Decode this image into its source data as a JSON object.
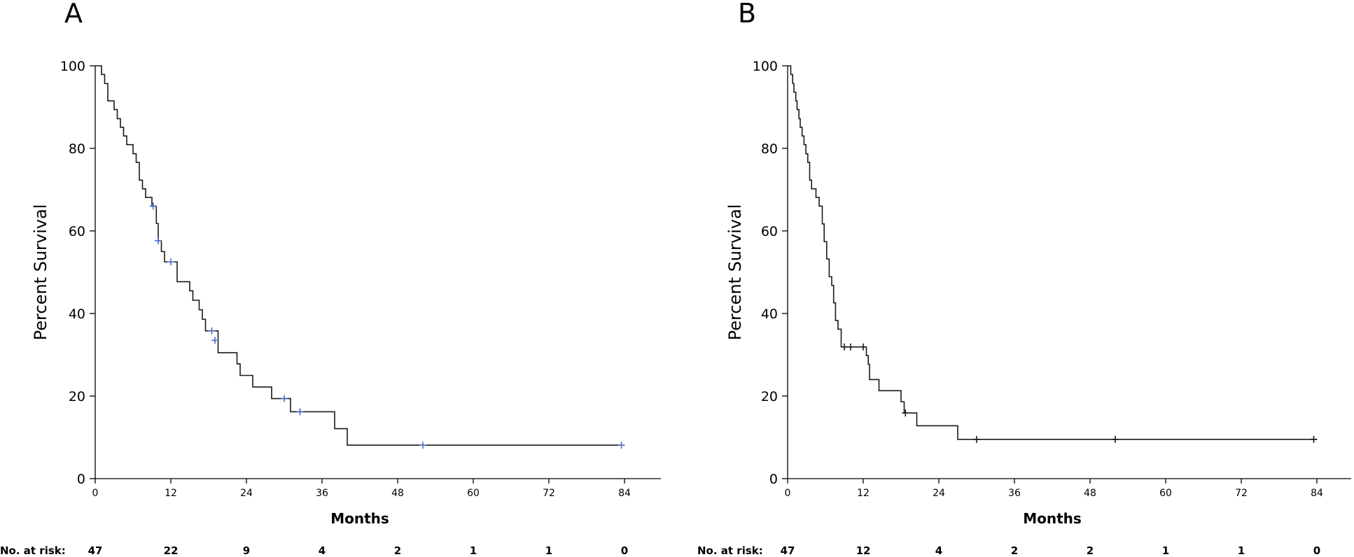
{
  "chart_data": [
    {
      "type": "line",
      "subtype": "kaplan-meier",
      "panel": "A",
      "ylabel": "Percent Survival",
      "xlabel": "Months",
      "xlim": [
        0,
        90
      ],
      "ylim": [
        0,
        100
      ],
      "x_ticks": [
        0,
        12,
        24,
        36,
        48,
        60,
        72,
        84
      ],
      "y_ticks": [
        0,
        20,
        40,
        60,
        80,
        100
      ],
      "curve_color": "#1a1a1a",
      "censor_color": "#4a6cc9",
      "series": [
        {
          "name": "Survival",
          "steps": [
            [
              0,
              100
            ],
            [
              1.0,
              97.9
            ],
            [
              1.5,
              95.7
            ],
            [
              2.0,
              91.5
            ],
            [
              3.0,
              89.4
            ],
            [
              3.5,
              87.2
            ],
            [
              4.0,
              85.1
            ],
            [
              4.5,
              83.0
            ],
            [
              5.0,
              80.9
            ],
            [
              6.0,
              78.7
            ],
            [
              6.5,
              76.6
            ],
            [
              7.0,
              72.3
            ],
            [
              7.5,
              70.2
            ],
            [
              8.0,
              68.1
            ],
            [
              9.0,
              66.0
            ],
            [
              9.7,
              61.8
            ],
            [
              10.0,
              57.6
            ],
            [
              10.5,
              55.0
            ],
            [
              11.0,
              52.5
            ],
            [
              13.0,
              47.7
            ],
            [
              15.0,
              45.5
            ],
            [
              15.5,
              43.2
            ],
            [
              16.5,
              40.9
            ],
            [
              17.0,
              38.6
            ],
            [
              17.5,
              35.8
            ],
            [
              19.5,
              30.5
            ],
            [
              22.5,
              27.8
            ],
            [
              23.0,
              25.0
            ],
            [
              25.0,
              22.2
            ],
            [
              28.0,
              19.4
            ],
            [
              31.0,
              16.2
            ],
            [
              38.0,
              12.1
            ],
            [
              40.0,
              8.1
            ],
            [
              84.0,
              8.1
            ]
          ],
          "censored": [
            [
              9.2,
              66.0
            ],
            [
              10.0,
              57.6
            ],
            [
              12.0,
              52.5
            ],
            [
              18.5,
              35.8
            ],
            [
              19.0,
              33.5
            ],
            [
              30.0,
              19.4
            ],
            [
              32.5,
              16.2
            ],
            [
              52.0,
              8.1
            ],
            [
              83.5,
              8.1
            ]
          ]
        }
      ],
      "risk_table": {
        "label": "No. at risk:",
        "times": [
          0,
          12,
          24,
          36,
          48,
          60,
          72,
          84
        ],
        "values": [
          "47",
          "22",
          "9",
          "4",
          "2",
          "1",
          "1",
          "0"
        ]
      }
    },
    {
      "type": "line",
      "subtype": "kaplan-meier",
      "panel": "B",
      "ylabel": "Percent Survival",
      "xlabel": "Months",
      "xlim": [
        0,
        90
      ],
      "ylim": [
        0,
        100
      ],
      "x_ticks": [
        0,
        12,
        24,
        36,
        48,
        60,
        72,
        84
      ],
      "y_ticks": [
        0,
        20,
        40,
        60,
        80,
        100
      ],
      "curve_color": "#1a1a1a",
      "censor_color": "#1a1a1a",
      "series": [
        {
          "name": "Survival",
          "steps": [
            [
              0,
              100
            ],
            [
              0.5,
              97.9
            ],
            [
              0.8,
              95.7
            ],
            [
              1.0,
              93.6
            ],
            [
              1.3,
              91.5
            ],
            [
              1.5,
              89.4
            ],
            [
              1.8,
              87.2
            ],
            [
              2.0,
              85.1
            ],
            [
              2.3,
              83.0
            ],
            [
              2.6,
              80.9
            ],
            [
              2.9,
              78.7
            ],
            [
              3.2,
              76.6
            ],
            [
              3.5,
              72.3
            ],
            [
              3.8,
              70.2
            ],
            [
              4.5,
              68.1
            ],
            [
              5.0,
              66.0
            ],
            [
              5.5,
              61.7
            ],
            [
              5.8,
              57.4
            ],
            [
              6.2,
              53.2
            ],
            [
              6.6,
              48.9
            ],
            [
              7.0,
              46.8
            ],
            [
              7.3,
              42.6
            ],
            [
              7.6,
              38.3
            ],
            [
              8.0,
              36.2
            ],
            [
              8.5,
              31.9
            ],
            [
              12.5,
              29.8
            ],
            [
              12.8,
              27.7
            ],
            [
              13.0,
              24.0
            ],
            [
              14.5,
              21.3
            ],
            [
              18.0,
              18.6
            ],
            [
              18.5,
              15.9
            ],
            [
              20.5,
              12.8
            ],
            [
              27.0,
              9.5
            ],
            [
              84.0,
              9.5
            ]
          ],
          "censored": [
            [
              9.0,
              31.9
            ],
            [
              10.0,
              31.9
            ],
            [
              12.0,
              31.9
            ],
            [
              18.7,
              15.9
            ],
            [
              30.0,
              9.5
            ],
            [
              52.0,
              9.5
            ],
            [
              83.5,
              9.5
            ]
          ]
        }
      ],
      "risk_table": {
        "label": "No. at risk:",
        "times": [
          0,
          12,
          24,
          36,
          48,
          60,
          72,
          84
        ],
        "values": [
          "47",
          "12",
          "4",
          "2",
          "2",
          "1",
          "1",
          "0"
        ]
      }
    }
  ]
}
